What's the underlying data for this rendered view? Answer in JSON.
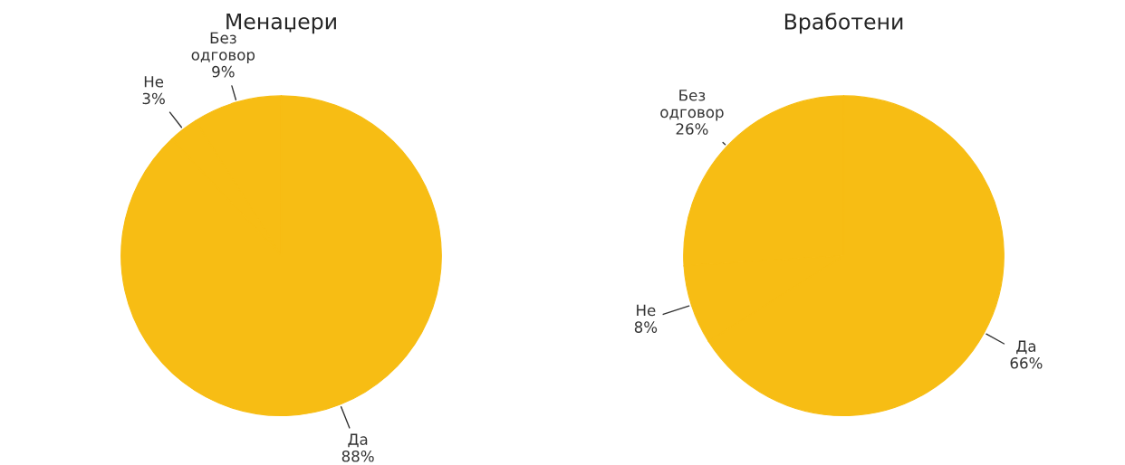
{
  "chart_data": [
    {
      "type": "pie",
      "title": "Менаџери",
      "categories": [
        "Без\nодговор",
        "Не",
        "Да"
      ],
      "values": [
        9,
        3,
        88
      ],
      "colors": [
        "#f7bd14",
        "#f7bd14",
        "#f7bd14"
      ],
      "value_labels": [
        "9%",
        "3%",
        "88%"
      ]
    },
    {
      "type": "pie",
      "title": "Вработени",
      "categories": [
        "Без\nодговор",
        "Не",
        "Да"
      ],
      "values": [
        26,
        8,
        66
      ],
      "colors": [
        "#f7bd14",
        "#f7bd14",
        "#f7bd14"
      ],
      "value_labels": [
        "26%",
        "8%",
        "66%"
      ]
    }
  ]
}
